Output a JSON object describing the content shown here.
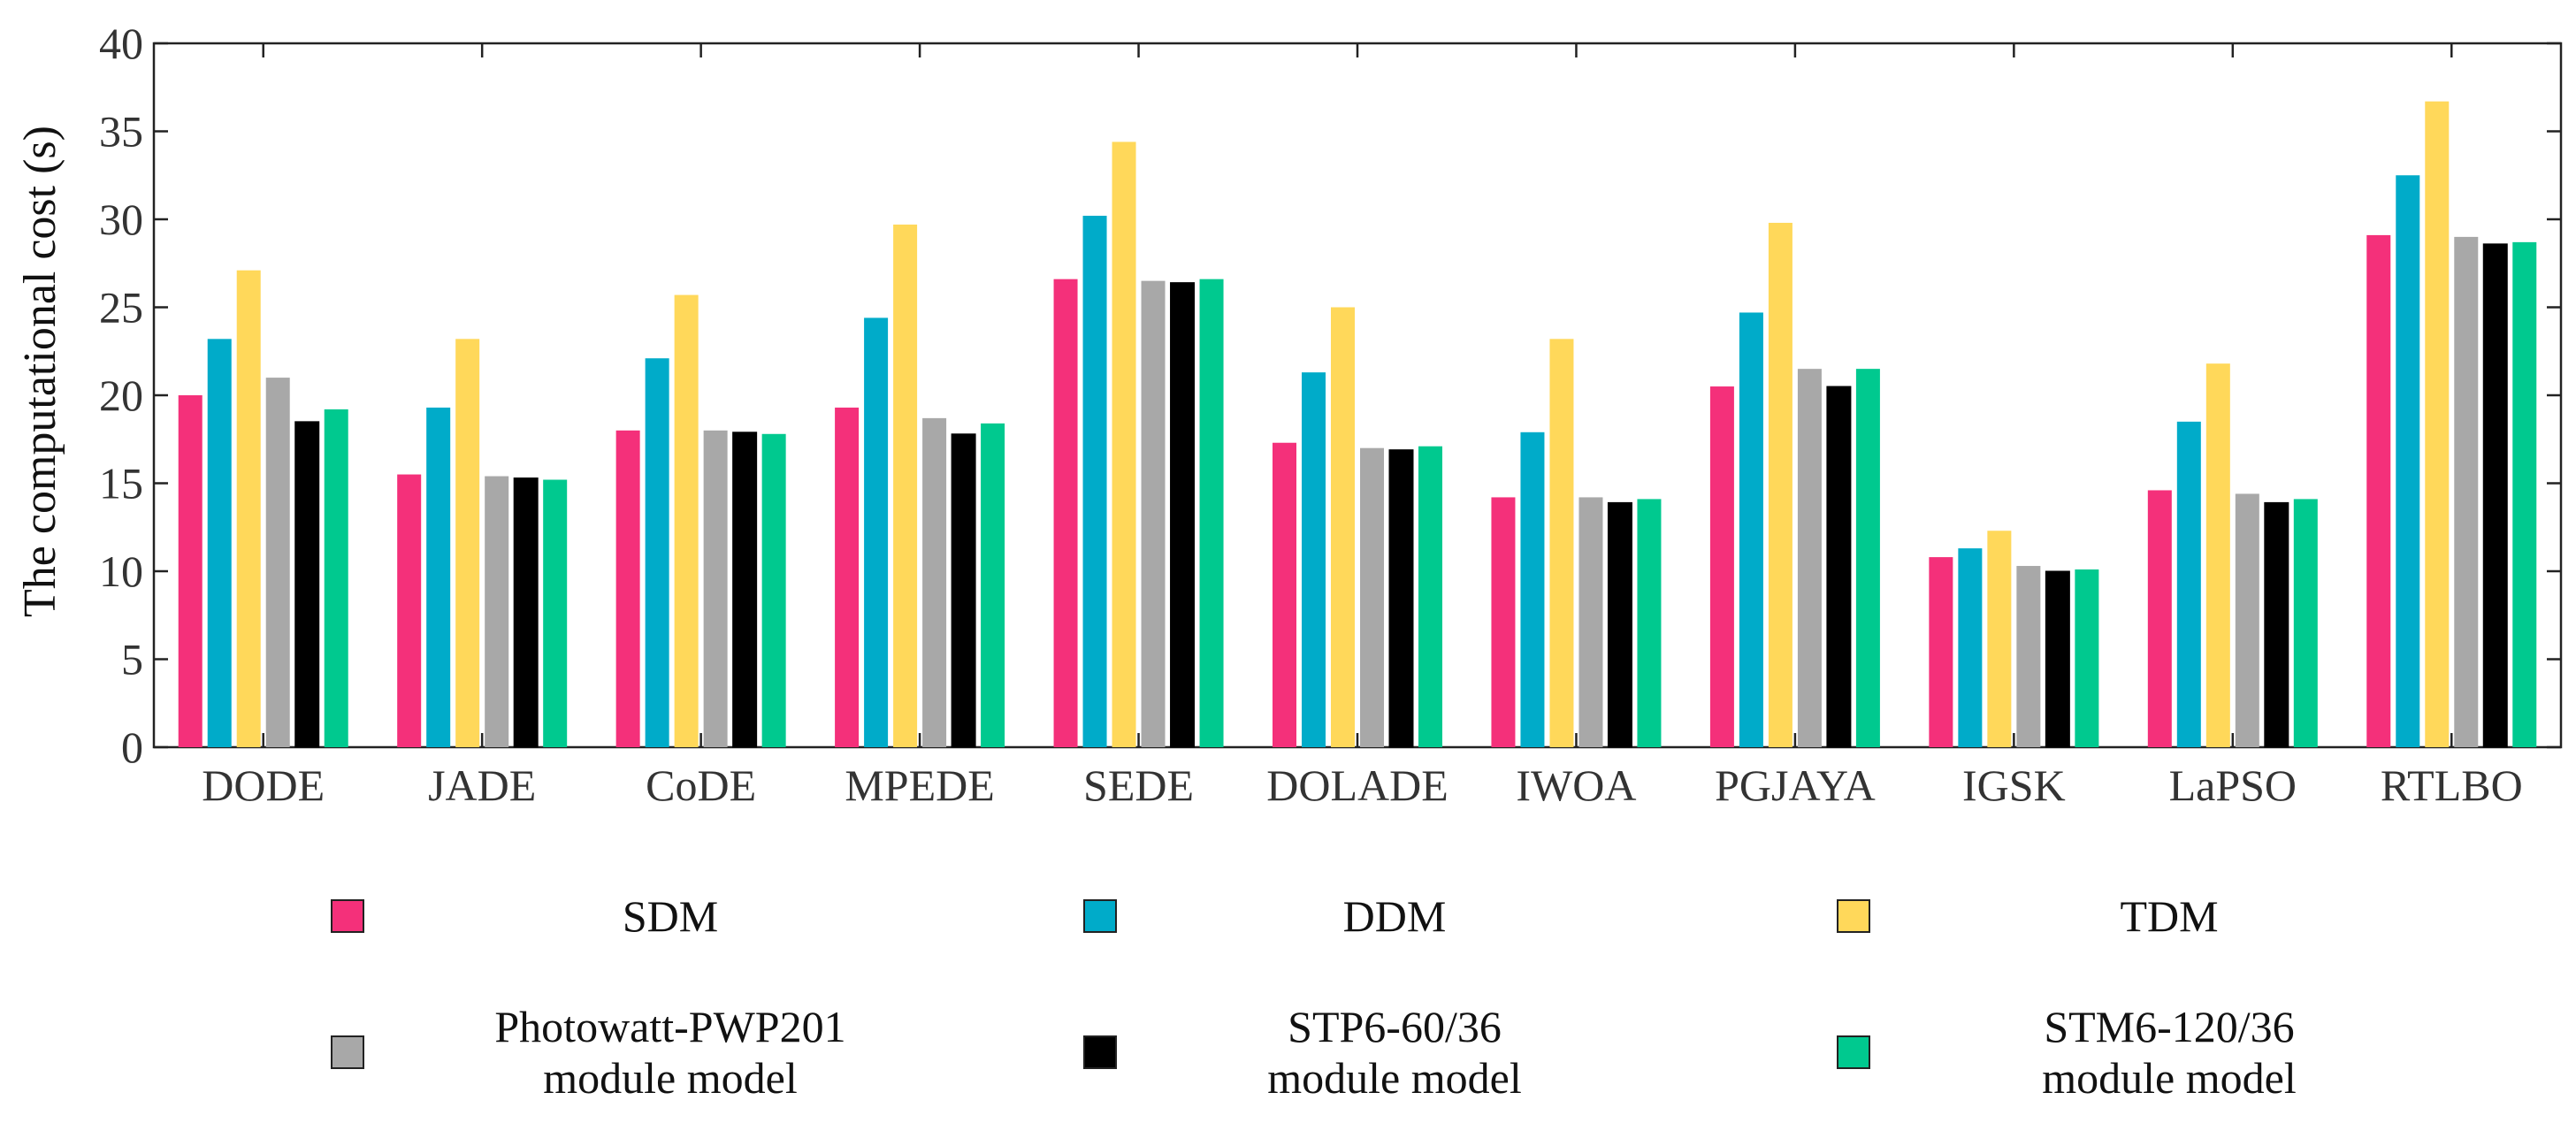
{
  "chart_data": {
    "type": "bar",
    "title": "",
    "xlabel": "",
    "ylabel": "The computational cost (s)",
    "ylim": [
      0,
      40
    ],
    "yticks": [
      0,
      5,
      10,
      15,
      20,
      25,
      30,
      35,
      40
    ],
    "grid": false,
    "legend_position": "bottom",
    "categories": [
      "DODE",
      "JADE",
      "CoDE",
      "MPEDE",
      "SEDE",
      "DOLADE",
      "IWOA",
      "PGJAYA",
      "IGSK",
      "LaPSO",
      "RTLBO"
    ],
    "series": [
      {
        "name": "SDM",
        "label_lines": [
          "SDM"
        ],
        "color": "#F4307A",
        "values": [
          20.0,
          15.5,
          18.0,
          19.3,
          26.6,
          17.3,
          14.2,
          20.5,
          10.8,
          14.6,
          29.1
        ]
      },
      {
        "name": "DDM",
        "label_lines": [
          "DDM"
        ],
        "color": "#00ABC9",
        "values": [
          23.2,
          19.3,
          22.1,
          24.4,
          30.2,
          21.3,
          17.9,
          24.7,
          11.3,
          18.5,
          32.5
        ]
      },
      {
        "name": "TDM",
        "label_lines": [
          "TDM"
        ],
        "color": "#FFD85A",
        "values": [
          27.1,
          23.2,
          25.7,
          29.7,
          34.4,
          25.0,
          23.2,
          29.8,
          12.3,
          21.8,
          36.7
        ]
      },
      {
        "name": "Photowatt-PWP201 module model",
        "label_lines": [
          "Photowatt-PWP201",
          "module model"
        ],
        "color": "#A8A8A8",
        "values": [
          21.0,
          15.4,
          18.0,
          18.7,
          26.5,
          17.0,
          14.2,
          21.5,
          10.3,
          14.4,
          29.0
        ]
      },
      {
        "name": "STP6-60/36 module model",
        "label_lines": [
          "STP6-60/36",
          "module model"
        ],
        "color": "#000000",
        "values": [
          18.5,
          15.3,
          17.9,
          17.8,
          26.4,
          16.9,
          13.9,
          20.5,
          10.0,
          13.9,
          28.6
        ]
      },
      {
        "name": "STM6-120/36 module model",
        "label_lines": [
          "STM6-120/36",
          "module model"
        ],
        "color": "#00C98F",
        "values": [
          19.2,
          15.2,
          17.8,
          18.4,
          26.6,
          17.1,
          14.1,
          21.5,
          10.1,
          14.1,
          28.7
        ]
      }
    ]
  }
}
